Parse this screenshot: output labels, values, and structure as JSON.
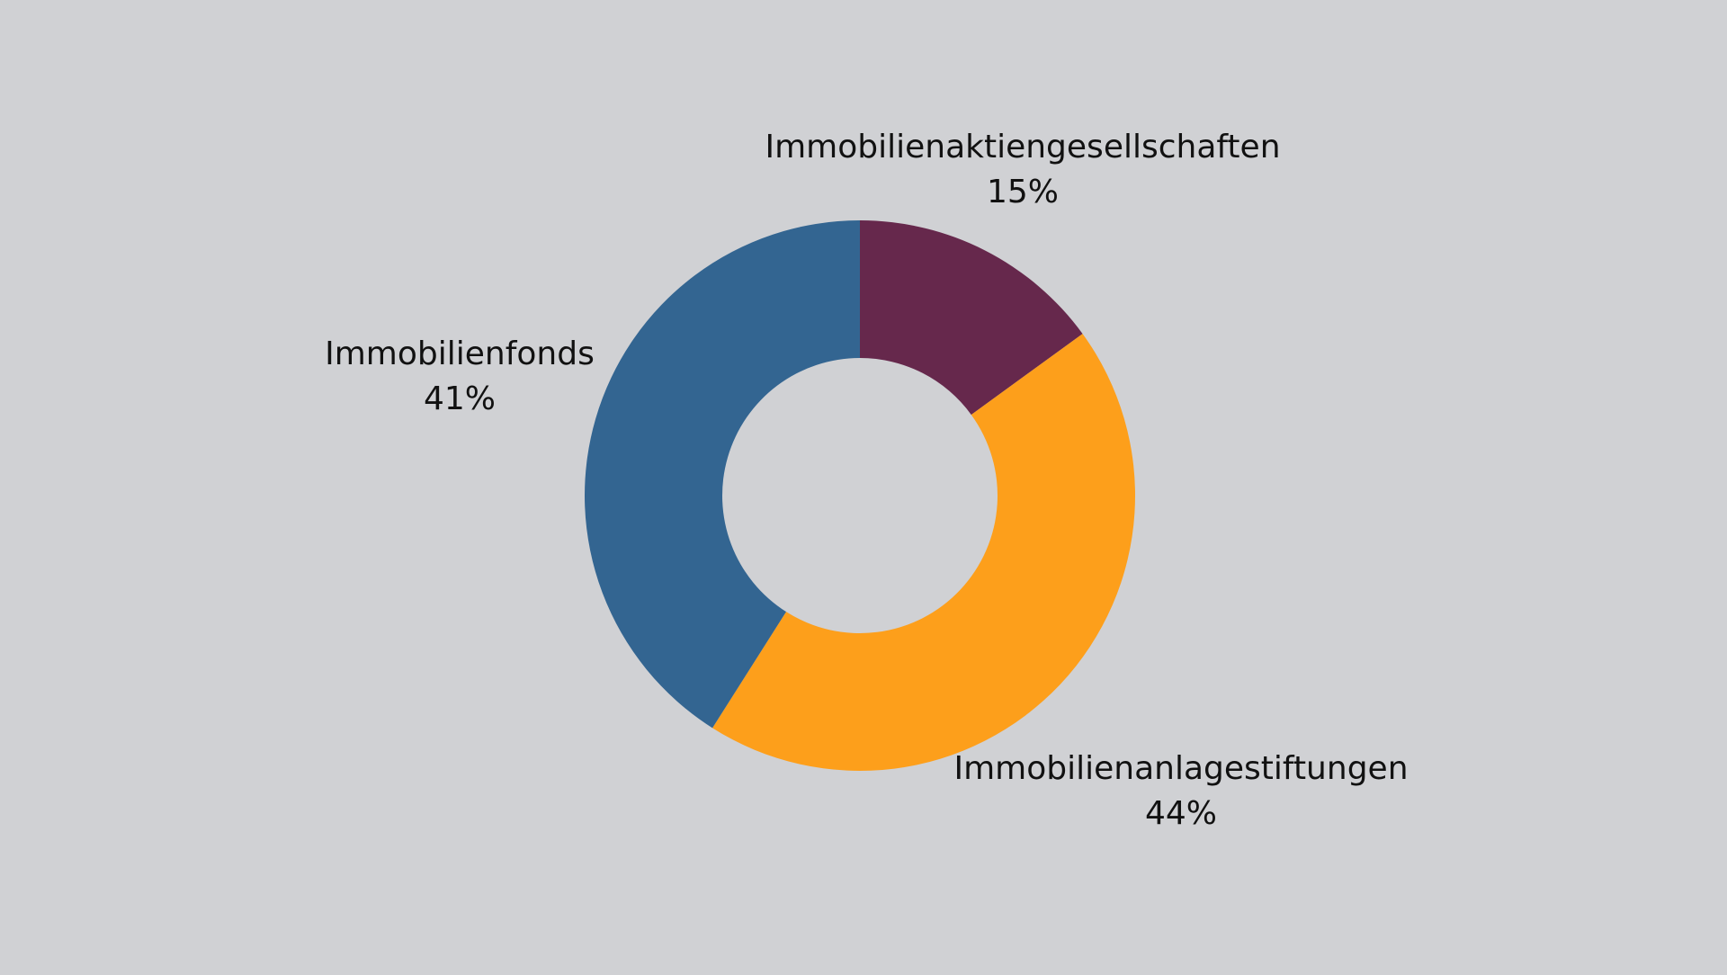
{
  "chart_data": {
    "type": "donut",
    "categories": [
      "Immobilienaktiengesellschaften",
      "Immobilienanlagestiftungen",
      "Immobilienfonds"
    ],
    "values": [
      15,
      44,
      41
    ],
    "value_labels": [
      "15%",
      "44%",
      "41%"
    ],
    "colors": [
      "#66284c",
      "#fd9f1b",
      "#336591"
    ]
  }
}
